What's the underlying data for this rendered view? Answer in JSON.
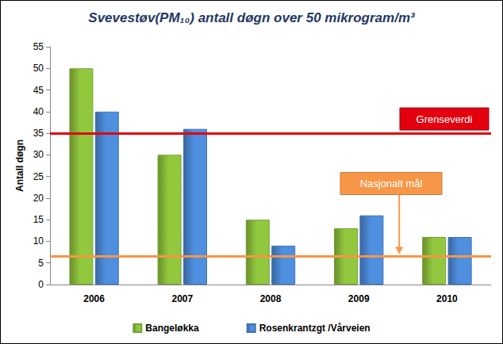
{
  "chart_data": {
    "type": "bar",
    "title": "Svevestøv(PM₁₀) antall døgn over 50 mikrogram/m³",
    "y_label": "Antall døgn",
    "categories": [
      "2006",
      "2007",
      "2008",
      "2009",
      "2010"
    ],
    "series": [
      {
        "name": "Bangeløkka",
        "color": "#92c83e",
        "values": [
          50,
          30,
          15,
          13,
          11
        ]
      },
      {
        "name": "Rosenkrantzgt /Vårveien",
        "color": "#4f8fdf",
        "values": [
          40,
          36,
          9,
          16,
          11
        ]
      }
    ],
    "ylim": [
      0,
      55
    ],
    "yticks": [
      0,
      5,
      10,
      15,
      20,
      25,
      30,
      35,
      40,
      45,
      50,
      55
    ],
    "grid": false,
    "legend": "bottom",
    "annotations": [
      {
        "text": "Grenseverdi",
        "value": 35,
        "color": "#e3000f"
      },
      {
        "text": "Nasjonalt mål",
        "value": 6.5,
        "color": "#f79646"
      }
    ]
  }
}
